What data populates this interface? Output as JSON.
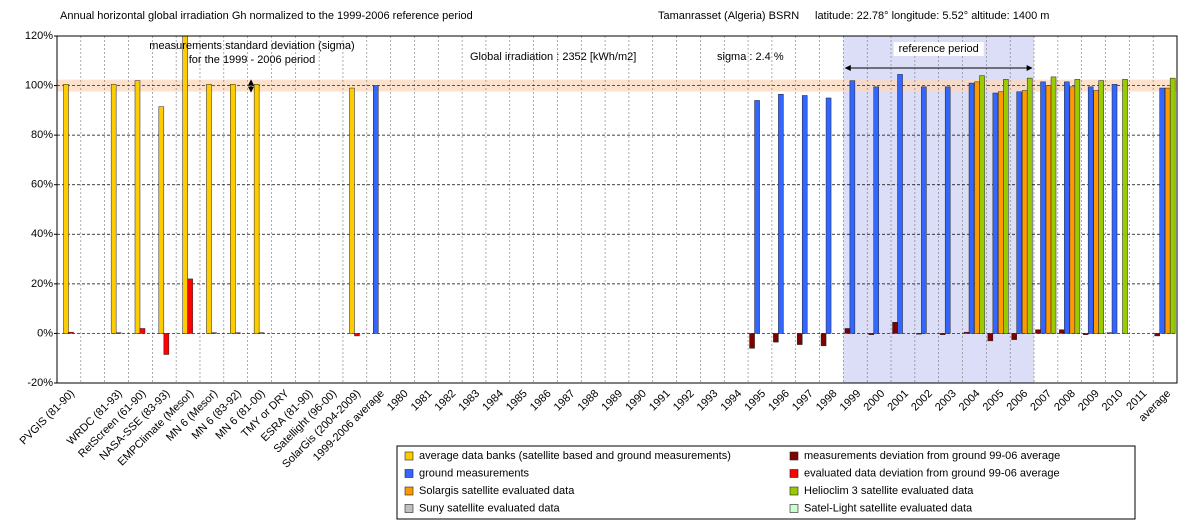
{
  "chart_data": {
    "type": "bar",
    "title": "Annual horizontal global irradiation Gh normalized to the 1999-2006 reference period",
    "site": "Tamanrasset (Algeria) BSRN",
    "location": "latitude: 22.78°  longitude: 5.52°  altitude: 1400 m",
    "annotations": {
      "sigma_note": [
        "measurements standard deviation (sigma)",
        "for the 1999 - 2006 period"
      ],
      "global_irradiation": "Global irradiation : 2352 [kWh/m2]",
      "sigma": "sigma : 2.4 %"
    },
    "sigma_band": [
      97.6,
      102.4
    ],
    "reference_period": {
      "from": "1999",
      "to": "2006",
      "label": "reference period"
    },
    "categories": [
      "PVGIS (81-90)",
      null,
      "WRDC (81-93)",
      "RetScreen (61-90)",
      "NASA-SSE (83-93)",
      "EMPClimate (Mesor)",
      "MN 6 (Mesor)",
      "MN 6 (83-92)",
      "MN 6 (81-00)",
      "TMY or DRY",
      "ESRA (81-90)",
      "Satellight (96-00)",
      "SolarGis (2004-2009)",
      "1999-2006 average",
      "1980",
      "1981",
      "1982",
      "1983",
      "1984",
      "1985",
      "1986",
      "1987",
      "1988",
      "1989",
      "1990",
      "1991",
      "1992",
      "1993",
      "1994",
      "1995",
      "1996",
      "1997",
      "1998",
      "1999",
      "2000",
      "2001",
      "2002",
      "2003",
      "2004",
      "2005",
      "2006",
      "2007",
      "2008",
      "2009",
      "2010",
      "2011",
      "average"
    ],
    "series": [
      {
        "name": "average data banks (satellite based and ground measurements)",
        "color": "#FFCC00",
        "values": [
          100.5,
          null,
          100.5,
          102,
          91.5,
          122,
          100.5,
          100.5,
          100.5,
          null,
          null,
          null,
          99,
          null,
          null,
          null,
          null,
          null,
          null,
          null,
          null,
          null,
          null,
          null,
          null,
          null,
          null,
          null,
          null,
          null,
          null,
          null,
          null,
          null,
          null,
          null,
          null,
          null,
          null,
          null,
          null,
          null,
          null,
          null,
          null,
          null,
          null
        ]
      },
      {
        "name": "ground measurements",
        "color": "#3366FF",
        "values": [
          null,
          null,
          null,
          null,
          null,
          null,
          null,
          null,
          null,
          null,
          null,
          null,
          null,
          100,
          null,
          null,
          null,
          null,
          null,
          null,
          null,
          null,
          null,
          null,
          null,
          null,
          null,
          null,
          null,
          94,
          96.5,
          96,
          95,
          102,
          99.5,
          104.5,
          99.5,
          99.5,
          101,
          97,
          97.5,
          101.5,
          101.5,
          99.5,
          100.5,
          null,
          99
        ]
      },
      {
        "name": "Solargis satellite evaluated data",
        "color": "#FF9900",
        "values": [
          null,
          null,
          null,
          null,
          null,
          null,
          null,
          null,
          null,
          null,
          null,
          null,
          null,
          null,
          null,
          null,
          null,
          null,
          null,
          null,
          null,
          null,
          null,
          null,
          null,
          null,
          null,
          null,
          null,
          null,
          null,
          null,
          null,
          null,
          null,
          null,
          null,
          null,
          101.5,
          97.5,
          98,
          100,
          99.5,
          98,
          null,
          null,
          99
        ]
      },
      {
        "name": "Suny satellite evaluated data",
        "color": "#C0C0C0",
        "values": [
          null,
          null,
          null,
          null,
          null,
          null,
          null,
          null,
          null,
          null,
          null,
          null,
          null,
          null,
          null,
          null,
          null,
          null,
          null,
          null,
          null,
          null,
          null,
          null,
          null,
          null,
          null,
          null,
          null,
          null,
          null,
          null,
          null,
          null,
          null,
          null,
          null,
          null,
          null,
          null,
          null,
          null,
          null,
          null,
          null,
          null,
          null
        ]
      },
      {
        "name": "measurements deviation from ground 99-06 average",
        "color": "#800000",
        "values": [
          null,
          null,
          null,
          null,
          null,
          null,
          null,
          null,
          null,
          null,
          null,
          null,
          null,
          null,
          null,
          null,
          null,
          null,
          null,
          null,
          null,
          null,
          null,
          null,
          null,
          null,
          null,
          null,
          null,
          -6,
          -3.5,
          -4.5,
          -5,
          2,
          -0.5,
          4.5,
          -0.3,
          -0.5,
          0.5,
          -3,
          -2.5,
          1.5,
          1.5,
          -0.5,
          0.3,
          null,
          -1
        ]
      },
      {
        "name": "evaluated data deviation from ground 99-06 average",
        "color": "#FF0000",
        "values": [
          0.5,
          null,
          0.3,
          2,
          -8.5,
          22,
          0.3,
          0.3,
          0.3,
          null,
          null,
          null,
          -1,
          null,
          null,
          null,
          null,
          null,
          null,
          null,
          null,
          null,
          null,
          null,
          null,
          null,
          null,
          null,
          null,
          null,
          null,
          null,
          null,
          null,
          null,
          null,
          null,
          null,
          null,
          null,
          null,
          null,
          null,
          null,
          null,
          null,
          null
        ]
      },
      {
        "name": "Helioclim 3  satellite evaluated data",
        "color": "#99CC00",
        "values": [
          null,
          null,
          null,
          null,
          null,
          null,
          null,
          null,
          null,
          null,
          null,
          null,
          null,
          null,
          null,
          null,
          null,
          null,
          null,
          null,
          null,
          null,
          null,
          null,
          null,
          null,
          null,
          null,
          null,
          null,
          null,
          null,
          null,
          null,
          null,
          null,
          null,
          null,
          104,
          102.5,
          103,
          103.5,
          102.5,
          102,
          102.5,
          null,
          103
        ]
      },
      {
        "name": "Satel-Light satellite evaluated data",
        "color": "#CCFFCC",
        "values": [
          null,
          null,
          null,
          null,
          null,
          null,
          null,
          null,
          null,
          null,
          null,
          null,
          null,
          null,
          null,
          null,
          null,
          null,
          null,
          null,
          null,
          null,
          null,
          null,
          null,
          null,
          null,
          null,
          null,
          null,
          null,
          null,
          null,
          null,
          null,
          null,
          null,
          null,
          null,
          null,
          null,
          null,
          null,
          null,
          null,
          null,
          null
        ]
      }
    ],
    "ylim": [
      -20,
      120
    ],
    "yticks": [
      {
        "value": -20,
        "label": "-20%"
      },
      {
        "value": 0,
        "label": "0%"
      },
      {
        "value": 20,
        "label": "20%"
      },
      {
        "value": 40,
        "label": "40%"
      },
      {
        "value": 60,
        "label": "60%"
      },
      {
        "value": 80,
        "label": "80%"
      },
      {
        "value": 100,
        "label": "100%"
      },
      {
        "value": 120,
        "label": "120%"
      }
    ],
    "grid": true
  }
}
